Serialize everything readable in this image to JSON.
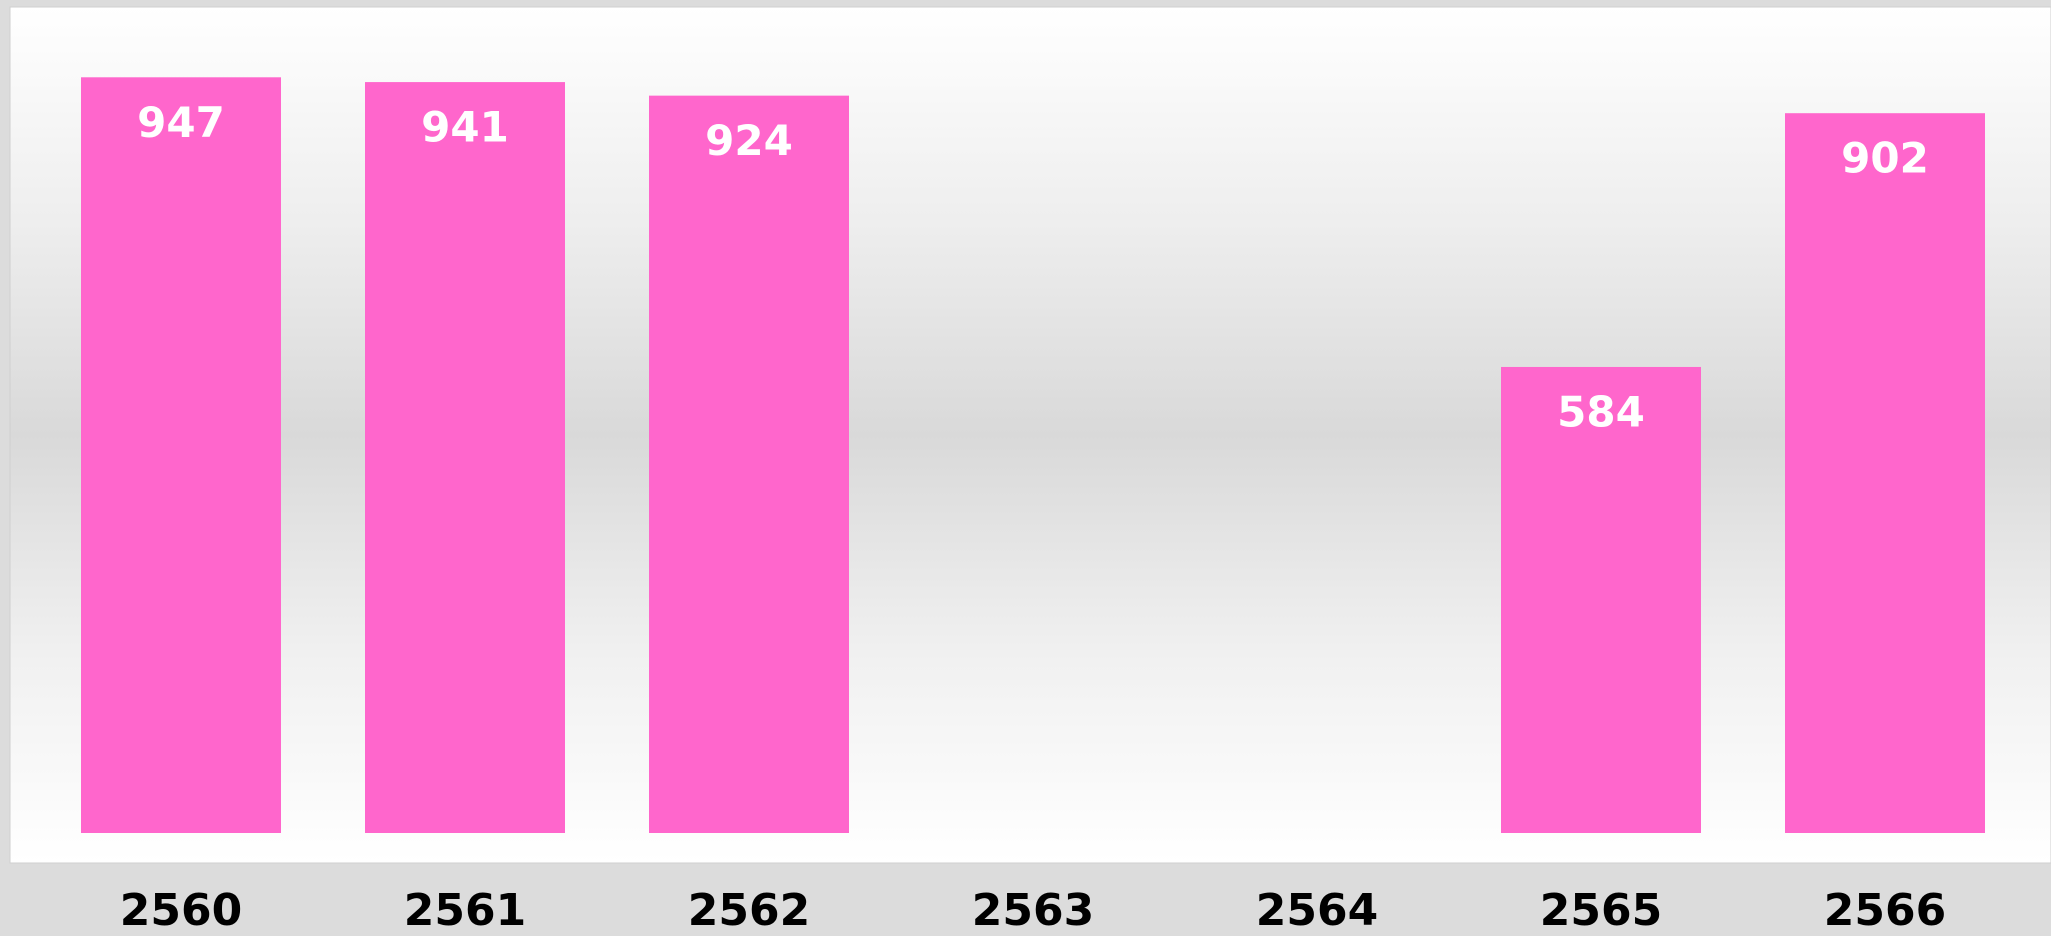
{
  "chart_data": {
    "type": "bar",
    "categories": [
      "2560",
      "2561",
      "2562",
      "2563",
      "2564",
      "2565",
      "2566"
    ],
    "values": [
      947,
      941,
      924,
      null,
      null,
      584,
      902
    ],
    "color": "#ff66cc",
    "ylim": [
      0,
      1000
    ]
  }
}
